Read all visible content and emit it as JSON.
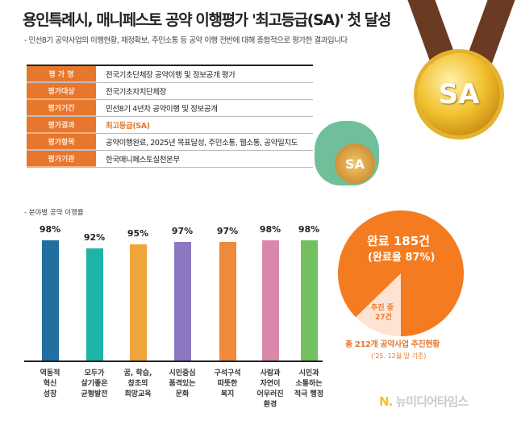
{
  "title": "용인특례시, 매니페스토 공약 이행평가 '최고등급(SA)' 첫 달성",
  "subtitle": "- 민선8기 공약사업의 이행현황, 재정확보, 주민소통 등 공약 이행 전반에 대해 종합적으로 평가한 결과입니다",
  "table": [
    {
      "k": "평 가 명",
      "v": "전국기초단체장 공약이행 및 정보공개 평가"
    },
    {
      "k": "평가대상",
      "v": "전국기초자치단체장"
    },
    {
      "k": "평가기간",
      "v": "민선8기 4년차 공약이행 및 정보공개"
    },
    {
      "k": "평가결과",
      "v": "최고등급(SA)"
    },
    {
      "k": "평가항목",
      "v": "공약이행완료, 2025년 목표달성, 주민소통, 웹소통, 공약일치도"
    },
    {
      "k": "평가기관",
      "v": "한국매니페스토실천본부"
    }
  ],
  "medal_text": "SA",
  "coin_text": "SA",
  "chart_data": [
    {
      "type": "bar",
      "title": "- 분야별 공약 이행률",
      "categories": [
        "역동적\n혁신\n성장",
        "모두가\n살기좋은\n균형발전",
        "꿈, 학습,\n창조의\n희망교육",
        "시민중심\n품격있는\n문화",
        "구석구석\n따뜻한\n복지",
        "사람과\n자연이\n어우러진\n환경",
        "시민과\n소통하는\n적극 행정"
      ],
      "values": [
        98,
        92,
        95,
        97,
        97,
        98,
        98
      ],
      "labels": [
        "98%",
        "92%",
        "95%",
        "97%",
        "97%",
        "98%",
        "98%"
      ],
      "colors": [
        "#1f6fa0",
        "#1fb3a8",
        "#f0a53a",
        "#8b78c0",
        "#ef8a3c",
        "#d889aa",
        "#72c060"
      ],
      "ylim": [
        0,
        100
      ]
    },
    {
      "type": "pie",
      "slices": [
        {
          "label": "완료 185건",
          "sub": "(완료율 87%)",
          "value": 185,
          "color": "#f47b20"
        },
        {
          "label": "추진 중",
          "sub": "27건",
          "value": 27,
          "color": "#fde3d2"
        }
      ],
      "note": "총 212개 공약사업 추진현황",
      "note2": "('25. 12월 말 기준)"
    }
  ],
  "logo": "뉴미디어타임스"
}
